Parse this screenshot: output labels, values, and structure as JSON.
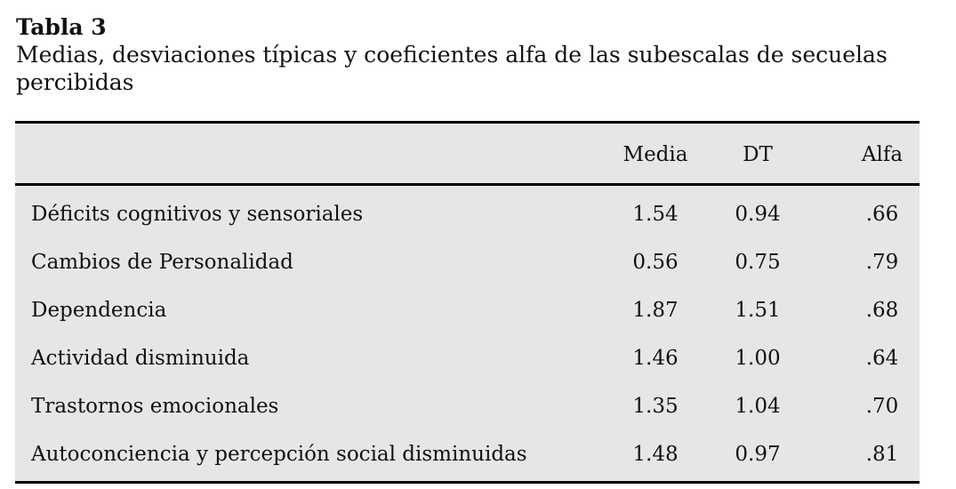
{
  "caption": {
    "label": "Tabla 3",
    "title_line1": "Medias, desviaciones típicas y coeficientes alfa de las subescalas de secuelas",
    "title_line2": "percibidas"
  },
  "table": {
    "headers": [
      "",
      "Media",
      "DT",
      "Alfa"
    ],
    "rows": [
      {
        "name": "Déficits cognitivos y sensoriales",
        "media": "1.54",
        "dt": "0.94",
        "alfa": ".66"
      },
      {
        "name": "Cambios de Personalidad",
        "media": "0.56",
        "dt": "0.75",
        "alfa": ".79"
      },
      {
        "name": "Dependencia",
        "media": "1.87",
        "dt": "1.51",
        "alfa": ".68"
      },
      {
        "name": "Actividad disminuida",
        "media": "1.46",
        "dt": "1.00",
        "alfa": ".64"
      },
      {
        "name": "Trastornos emocionales",
        "media": "1.35",
        "dt": "1.04",
        "alfa": ".70"
      },
      {
        "name": "Autoconciencia y percepción social disminuidas",
        "media": "1.48",
        "dt": "0.97",
        "alfa": ".81"
      }
    ]
  }
}
